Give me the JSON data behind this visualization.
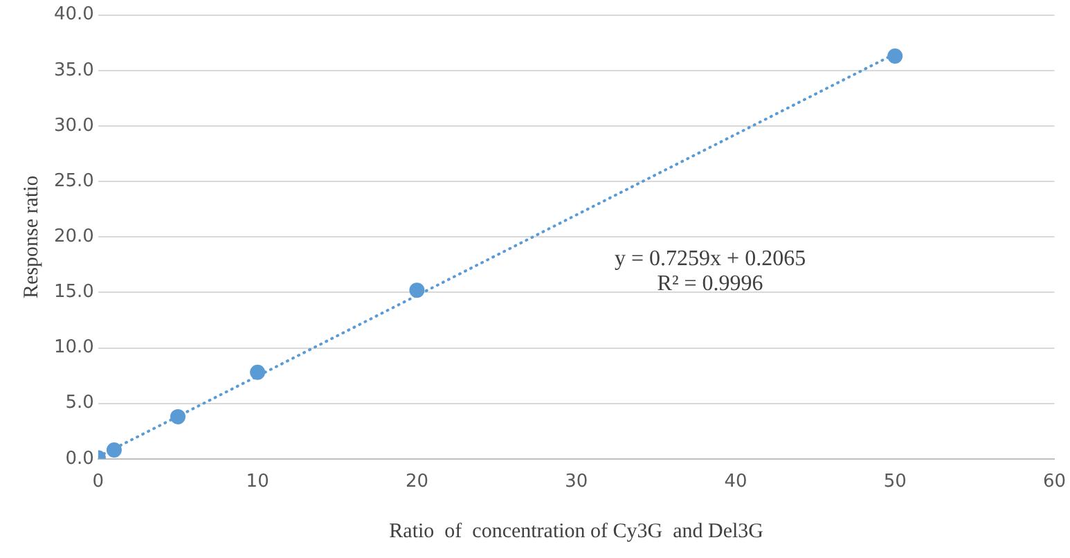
{
  "chart_data": {
    "type": "scatter",
    "xlabel": "Ratio  of  concentration of Cy3G  and Del3G",
    "ylabel": "Response ratio",
    "xlim": [
      0,
      60
    ],
    "xticks": [
      0,
      10,
      20,
      30,
      40,
      50,
      60
    ],
    "ylim": [
      0,
      40
    ],
    "yticks": [
      {
        "value": 0,
        "label": "0.0"
      },
      {
        "value": 5,
        "label": "5.0"
      },
      {
        "value": 10,
        "label": "10.0"
      },
      {
        "value": 15,
        "label": "15.0"
      },
      {
        "value": 20,
        "label": "20.0"
      },
      {
        "value": 25,
        "label": "25.0"
      },
      {
        "value": 30,
        "label": "30.0"
      },
      {
        "value": 35,
        "label": "35.0"
      },
      {
        "value": 40,
        "label": "40.0"
      }
    ],
    "grid": "y",
    "legend": false,
    "series": [
      {
        "type": "scatter",
        "color": "#5b9bd5",
        "marker": "circle",
        "x": [
          0,
          1,
          5,
          10,
          20,
          50
        ],
        "values": [
          0.1,
          0.8,
          3.8,
          7.8,
          15.2,
          36.3
        ]
      },
      {
        "type": "line",
        "color": "#5b9bd5",
        "line_style": "dotted",
        "marker": "none",
        "x": [
          0,
          50
        ],
        "values": [
          0.2,
          36.5
        ]
      }
    ],
    "annotations": [
      "y = 0.7259x + 0.2065",
      "R² = 0.9996"
    ]
  }
}
